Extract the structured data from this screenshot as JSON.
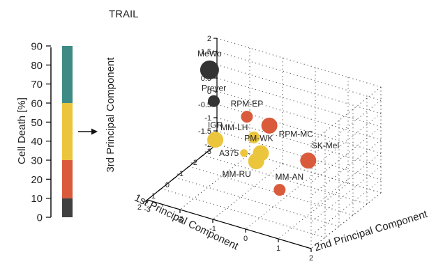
{
  "chart_data": [
    {
      "type": "bar",
      "subtype": "stacked-color-scale",
      "ylabel": "Cell Death [%]",
      "ylim": [
        0,
        90
      ],
      "yticks": [
        0,
        10,
        20,
        30,
        40,
        50,
        60,
        70,
        80,
        90
      ],
      "segments": [
        {
          "from": 0,
          "to": 10,
          "color": "#404040"
        },
        {
          "from": 10,
          "to": 30,
          "color": "#d95b3c"
        },
        {
          "from": 30,
          "to": 60,
          "color": "#ebc63d"
        },
        {
          "from": 60,
          "to": 90,
          "color": "#3e8b86"
        }
      ]
    },
    {
      "type": "scatter",
      "subtype": "3d-bubble",
      "title": "TRAIL",
      "xlabel": "1st Principal Component",
      "ylabel": "2nd Principal Component",
      "zlabel": "3rd Principal Component",
      "xticks": [
        "-3",
        "-2",
        "-1",
        "0",
        "1",
        "2"
      ],
      "yticks": [
        "-3",
        "-2",
        "-1",
        "0",
        "1",
        "2"
      ],
      "zticks": [
        "-2",
        "-1.5",
        "-1",
        "-0.5",
        "0",
        "0.5",
        "1",
        "1.5",
        "2"
      ],
      "grid": true,
      "points": [
        {
          "label": "MeWo",
          "pc1": -2.0,
          "pc2": -2.8,
          "pc3": 1.3,
          "color": "#333333",
          "size": "large"
        },
        {
          "label": "Preyer",
          "pc1": -1.6,
          "pc2": -2.5,
          "pc3": 0.4,
          "color": "#333333",
          "size": "small"
        },
        {
          "label": "RPM-EP",
          "pc1": 1.2,
          "pc2": -0.3,
          "pc3": 1.8,
          "color": "#d95b3c",
          "size": "small"
        },
        {
          "label": "RPM-MC",
          "pc1": 1.0,
          "pc2": 0.3,
          "pc3": 1.6,
          "color": "#d95b3c",
          "size": "medium"
        },
        {
          "label": "SK-Mel",
          "pc1": 0.8,
          "pc2": 1.4,
          "pc3": 0.6,
          "color": "#d95b3c",
          "size": "medium"
        },
        {
          "label": "MM-AN",
          "pc1": 0.5,
          "pc2": 0.4,
          "pc3": -1.0,
          "color": "#d95b3c",
          "size": "small"
        },
        {
          "label": "MM-LH",
          "pc1": 0.0,
          "pc2": -0.6,
          "pc3": 0.4,
          "color": "#ebc63d",
          "size": "small"
        },
        {
          "label": "PM-WK",
          "pc1": 0.2,
          "pc2": -0.3,
          "pc3": 0.0,
          "color": "#ebc63d",
          "size": "medium"
        },
        {
          "label": "A375",
          "pc1": 0.0,
          "pc2": -0.9,
          "pc3": -0.3,
          "color": "#ebc63d",
          "size": "tiny"
        },
        {
          "label": "MM-RU",
          "pc1": 0.3,
          "pc2": -0.4,
          "pc3": -0.3,
          "color": "#ebc63d",
          "size": "medium"
        },
        {
          "label": "IGR",
          "pc1": -1.0,
          "pc2": -2.2,
          "pc3": -0.7,
          "color": "#ebc63d",
          "size": "medium"
        }
      ]
    }
  ]
}
